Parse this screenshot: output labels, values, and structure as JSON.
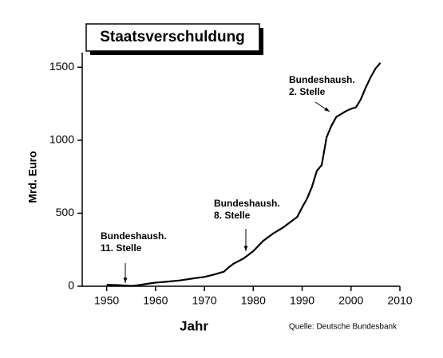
{
  "chart_data": {
    "type": "line",
    "title": "Staatsverschuldung",
    "x_label": "Jahr",
    "y_label": "Mrd. Euro",
    "source": "Quelle: Deutsche Bundesbank",
    "x": [
      1950,
      1952,
      1954,
      1955,
      1956,
      1958,
      1960,
      1962,
      1965,
      1968,
      1970,
      1972,
      1974,
      1975,
      1976,
      1978,
      1980,
      1982,
      1984,
      1986,
      1988,
      1989,
      1990,
      1991,
      1992,
      1993,
      1994,
      1995,
      1996,
      1997,
      1998,
      1999,
      2000,
      2001,
      2002,
      2003,
      2004,
      2005,
      2006
    ],
    "series": [
      {
        "name": "Staatsverschuldung",
        "color": "#000000",
        "values": [
          10,
          8,
          4,
          2,
          5,
          15,
          25,
          30,
          40,
          55,
          64,
          80,
          100,
          130,
          155,
          190,
          240,
          310,
          360,
          400,
          450,
          475,
          540,
          600,
          680,
          790,
          830,
          1020,
          1100,
          1160,
          1180,
          1200,
          1215,
          1225,
          1280,
          1360,
          1430,
          1490,
          1530
        ]
      }
    ],
    "xlim": [
      1945,
      2010
    ],
    "xticks": [
      1950,
      1960,
      1970,
      1980,
      1990,
      2000,
      2010
    ],
    "ylim": [
      0,
      1600
    ],
    "yticks": [
      0,
      500,
      1000,
      1500
    ],
    "annotations": [
      {
        "lines": [
          "Bundeshaush.",
          "11. Stelle"
        ]
      },
      {
        "lines": [
          "Bundeshaush.",
          "8. Stelle"
        ]
      },
      {
        "lines": [
          "Bundeshaush.",
          "2. Stelle"
        ]
      }
    ]
  }
}
